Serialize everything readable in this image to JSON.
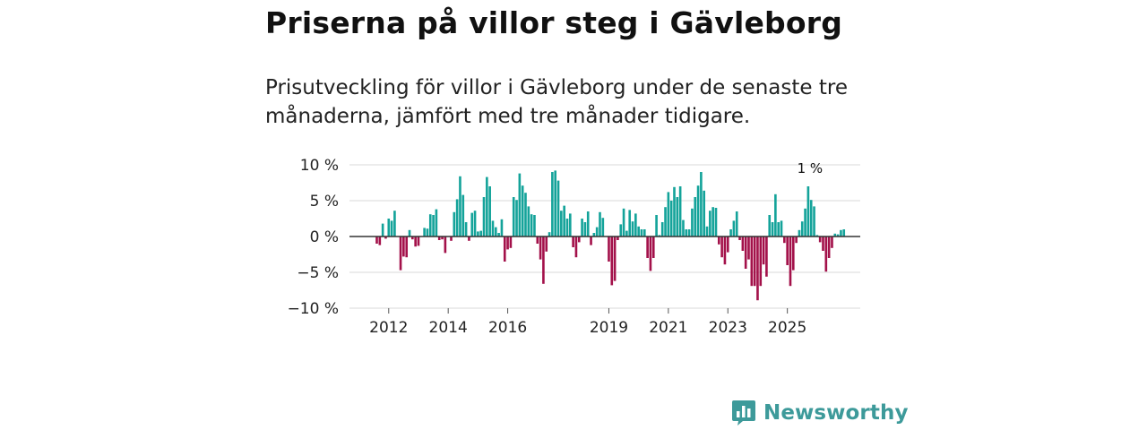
{
  "title": "Priserna på villor steg i Gävleborg",
  "subtitle": "Prisutveckling för villor i Gävleborg under de senaste tre månaderna, jämfört med tre månader tidigare.",
  "brand": {
    "name": "Newsworthy",
    "color": "#3d9a9a",
    "icon": "newsworthy-logo-icon"
  },
  "colors": {
    "positive": "#14a39a",
    "negative": "#a3114a",
    "zero_line": "#333333",
    "grid": "#d9d9d9"
  },
  "chart_data": {
    "type": "bar",
    "title": "Priserna på villor steg i Gävleborg",
    "xlabel": "",
    "ylabel": "",
    "ylim": [
      -10,
      10
    ],
    "yticks": [
      {
        "value": 10,
        "label": "10 %"
      },
      {
        "value": 5,
        "label": "5 %"
      },
      {
        "value": 0,
        "label": "0 %"
      },
      {
        "value": -5,
        "label": "−5 %"
      },
      {
        "value": -10,
        "label": "−10 %"
      }
    ],
    "xticks": [
      {
        "index": 4,
        "label": "2012"
      },
      {
        "index": 24,
        "label": "2014"
      },
      {
        "index": 44,
        "label": "2016"
      },
      {
        "index": 78,
        "label": "2019"
      },
      {
        "index": 98,
        "label": "2021"
      },
      {
        "index": 118,
        "label": "2023"
      },
      {
        "index": 138,
        "label": "2025"
      }
    ],
    "annotation": {
      "index": 145,
      "text": "1 %"
    },
    "values": [
      -1,
      -1.2,
      1.8,
      -0.3,
      2.5,
      2.2,
      3.6,
      0,
      -4.7,
      -2.8,
      -2.9,
      0.9,
      -0.4,
      -1.4,
      -1.3,
      0,
      1.2,
      1.1,
      3.1,
      3,
      3.8,
      -0.5,
      -0.4,
      -2.3,
      0,
      -0.6,
      3.4,
      5.2,
      8.4,
      5.8,
      2,
      -0.6,
      3.3,
      3.6,
      0.7,
      0.8,
      5.5,
      8.3,
      7,
      2.2,
      1.3,
      0.5,
      2.4,
      -3.5,
      -1.8,
      -1.6,
      5.5,
      5.1,
      8.8,
      7.1,
      6.1,
      4.2,
      3.1,
      3.0,
      -1,
      -3.2,
      -6.6,
      -2.1,
      0.6,
      9,
      9.2,
      7.8,
      3.6,
      4.3,
      2.5,
      3.2,
      -1.5,
      -2.9,
      -0.8,
      2.5,
      2,
      3.5,
      -1.2,
      0.5,
      1.3,
      3.4,
      2.6,
      0,
      -3.5,
      -6.8,
      -6.2,
      -0.5,
      1.7,
      3.9,
      0.8,
      3.7,
      2.1,
      3.2,
      1.4,
      1.0,
      1.0,
      -3,
      -4.8,
      -3,
      3,
      0.2,
      2,
      4.1,
      6.2,
      5,
      6.9,
      5.5,
      7,
      2.3,
      1,
      1,
      3.9,
      5.5,
      7.1,
      9,
      6.4,
      1.4,
      3.6,
      4.1,
      4.0,
      -1.1,
      -2.9,
      -3.9,
      -2.2,
      1,
      2.2,
      3.5,
      -0.5,
      -2,
      -4.5,
      -3.2,
      -6.9,
      -6.9,
      -8.9,
      -6.9,
      -3.9,
      -5.6,
      3.0,
      2.0,
      5.9,
      2.0,
      2.2,
      -0.9,
      -4,
      -6.9,
      -4.7,
      -0.9,
      0.9,
      2.1,
      3.9,
      7,
      5.1,
      4.2,
      0.2,
      -0.8,
      -2,
      -4.9,
      -3,
      -1.6,
      0.4,
      0.3,
      0.9,
      1.0
    ]
  }
}
